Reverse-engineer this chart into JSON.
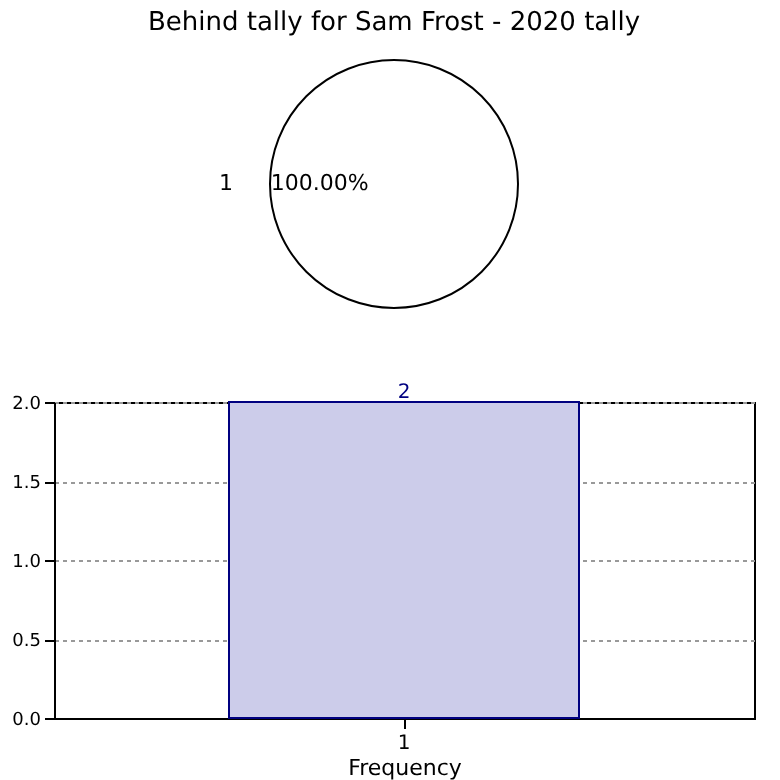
{
  "chart_data": [
    {
      "type": "pie",
      "title": "Behind tally for Sam Frost - 2020 tally",
      "categories": [
        "1"
      ],
      "values": [
        100
      ],
      "colors": [
        "#ffffff"
      ],
      "value_labels": [
        "100.00%"
      ]
    },
    {
      "type": "bar",
      "categories": [
        "1"
      ],
      "values": [
        2
      ],
      "color": "#ccccea",
      "xlabel": "Frequency",
      "ylim": [
        0,
        2
      ],
      "yticks": [
        {
          "value": 0,
          "label": "0.0"
        },
        0.5,
        {
          "value": 1,
          "label": "1.0"
        },
        1.5,
        {
          "value": 2,
          "label": "2.0"
        }
      ],
      "grid": true,
      "data_labels": true
    }
  ]
}
